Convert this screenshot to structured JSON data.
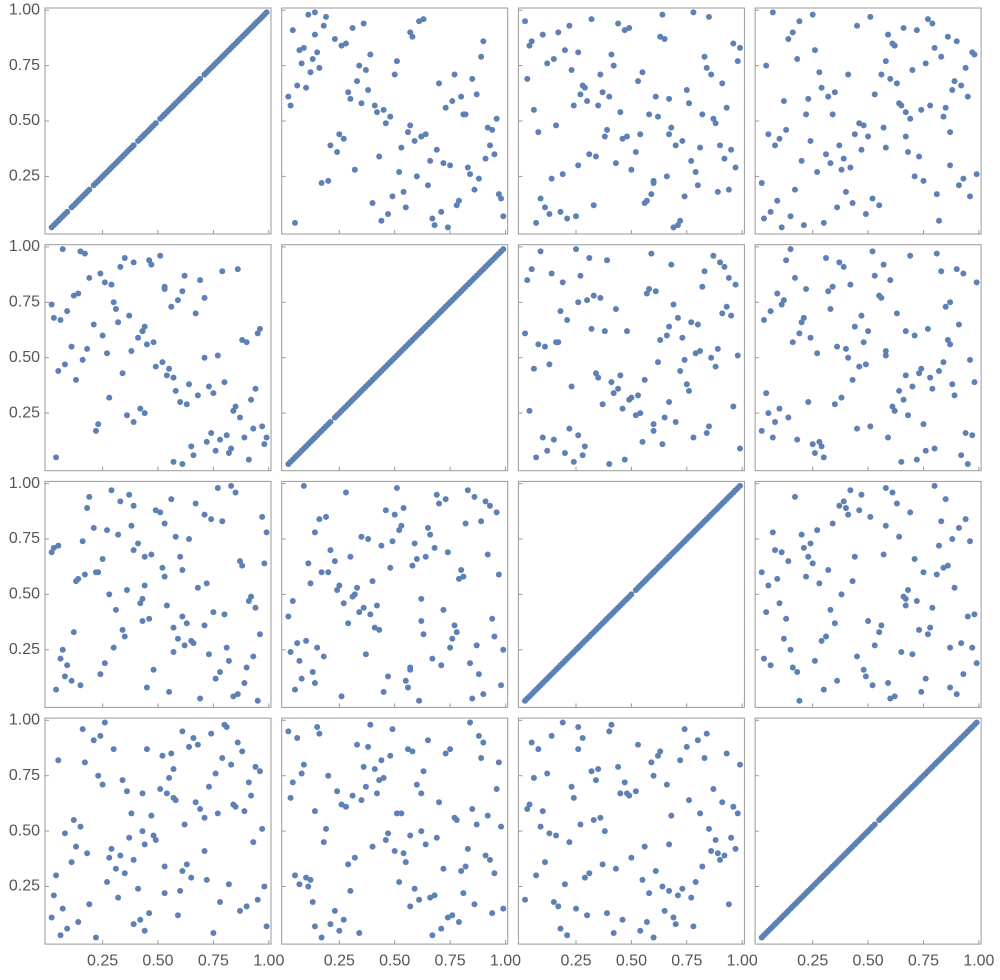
{
  "chart_data": {
    "type": "scatter-matrix",
    "color": "#5e81b5",
    "xlim": [
      -0.01,
      1.01
    ],
    "ylim": [
      -0.01,
      1.01
    ],
    "xticks": [
      0.25,
      {
        "value": 0.5,
        "label": "0.50"
      },
      0.75,
      {
        "value": 1,
        "label": "1.00"
      }
    ],
    "yticks": [
      0.25,
      {
        "value": 0.5,
        "label": "0.50"
      },
      0.75,
      {
        "value": 1,
        "label": "1.00"
      }
    ],
    "dimensions": [
      [
        0.12,
        0.87,
        0.45,
        0.33,
        0.91,
        0.06,
        0.58,
        0.72,
        0.24,
        0.49,
        0.95,
        0.17,
        0.63,
        0.38,
        0.81,
        0.02,
        0.54,
        0.29,
        0.76,
        0.41,
        0.68,
        0.09,
        0.97,
        0.35,
        0.52,
        0.84,
        0.19,
        0.61,
        0.44,
        0.73,
        0.27,
        0.89,
        0.14,
        0.57,
        0.39,
        0.66,
        0.03,
        0.92,
        0.48,
        0.79,
        0.22,
        0.55,
        0.31,
        0.85,
        0.07,
        0.64,
        0.43,
        0.98,
        0.26,
        0.71,
        0.36,
        0.59,
        0.83,
        0.11,
        0.47,
        0.75,
        0.21,
        0.93,
        0.53,
        0.34,
        0.67,
        0.04,
        0.88,
        0.42,
        0.62,
        0.16,
        0.78,
        0.51,
        0.28,
        0.96,
        0.39,
        0.69,
        0.13,
        0.56,
        0.82,
        0.25,
        0.46,
        0.74,
        0.08,
        0.61,
        0.94,
        0.32,
        0.57,
        0.18,
        0.86,
        0.44,
        0.71,
        0.05,
        0.65,
        0.37,
        0.9,
        0.23,
        0.53,
        0.8,
        0.15,
        0.6,
        0.43,
        0.99,
        0.3,
        0.77
      ],
      [
        0.78,
        0.23,
        0.56,
        0.91,
        0.04,
        0.67,
        0.35,
        0.12,
        0.88,
        0.46,
        0.61,
        0.97,
        0.29,
        0.53,
        0.15,
        0.74,
        0.42,
        0.83,
        0.08,
        0.59,
        0.33,
        0.71,
        0.19,
        0.95,
        0.48,
        0.26,
        0.86,
        0.02,
        0.64,
        0.37,
        0.52,
        0.14,
        0.79,
        0.41,
        0.93,
        0.06,
        0.68,
        0.31,
        0.57,
        0.89,
        0.17,
        0.45,
        0.72,
        0.28,
        0.99,
        0.38,
        0.62,
        0.11,
        0.84,
        0.5,
        0.24,
        0.76,
        0.09,
        0.55,
        0.92,
        0.34,
        0.65,
        0.18,
        0.81,
        0.43,
        0.7,
        0.05,
        0.58,
        0.27,
        0.87,
        0.49,
        0.13,
        0.96,
        0.32,
        0.63,
        0.21,
        0.85,
        0.4,
        0.73,
        0.07,
        0.6,
        0.94,
        0.16,
        0.47,
        0.8,
        0.36,
        0.66,
        0.03,
        0.54,
        0.9,
        0.25,
        0.77,
        0.44,
        0.1,
        0.69,
        0.57,
        0.2,
        0.82,
        0.39,
        0.98,
        0.3,
        0.62,
        0.14,
        0.75,
        0.51
      ],
      [
        0.33,
        0.65,
        0.08,
        0.92,
        0.47,
        0.21,
        0.76,
        0.55,
        0.14,
        0.88,
        0.02,
        0.59,
        0.37,
        0.81,
        0.26,
        0.69,
        0.45,
        0.97,
        0.12,
        0.73,
        0.53,
        0.18,
        0.85,
        0.31,
        0.62,
        0.04,
        0.94,
        0.4,
        0.67,
        0.23,
        0.79,
        0.1,
        0.57,
        0.35,
        0.9,
        0.28,
        0.71,
        0.49,
        0.16,
        0.83,
        0.6,
        0.06,
        0.43,
        0.96,
        0.25,
        0.75,
        0.38,
        0.64,
        0.19,
        0.86,
        0.52,
        0.3,
        0.99,
        0.11,
        0.68,
        0.42,
        0.8,
        0.22,
        0.58,
        0.34,
        0.91,
        0.07,
        0.63,
        0.46,
        0.27,
        0.74,
        0.15,
        0.87,
        0.5,
        0.32,
        0.7,
        0.03,
        0.56,
        0.93,
        0.2,
        0.66,
        0.39,
        0.84,
        0.13,
        0.61,
        0.44,
        0.77,
        0.24,
        0.89,
        0.05,
        0.54,
        0.36,
        0.72,
        0.29,
        0.95,
        0.17,
        0.6,
        0.82,
        0.41,
        0.09,
        0.67,
        0.48,
        0.78,
        0.26,
        0.98
      ],
      [
        0.55,
        0.14,
        0.87,
        0.39,
        0.72,
        0.03,
        0.64,
        0.28,
        0.93,
        0.46,
        0.19,
        0.81,
        0.35,
        0.58,
        0.97,
        0.11,
        0.67,
        0.42,
        0.76,
        0.24,
        0.89,
        0.06,
        0.51,
        0.31,
        0.84,
        0.62,
        0.17,
        0.95,
        0.44,
        0.7,
        0.27,
        0.59,
        0.09,
        0.78,
        0.37,
        0.92,
        0.21,
        0.66,
        0.48,
        0.83,
        0.02,
        0.74,
        0.33,
        0.61,
        0.15,
        0.88,
        0.5,
        0.25,
        0.99,
        0.41,
        0.68,
        0.12,
        0.8,
        0.36,
        0.57,
        0.04,
        0.91,
        0.45,
        0.22,
        0.73,
        0.63,
        0.3,
        0.86,
        0.1,
        0.53,
        0.96,
        0.18,
        0.69,
        0.38,
        0.77,
        0.08,
        0.6,
        0.43,
        0.85,
        0.26,
        0.71,
        0.13,
        0.94,
        0.49,
        0.32,
        0.79,
        0.2,
        0.65,
        0.4,
        0.9,
        0.05,
        0.56,
        0.82,
        0.29,
        0.47,
        0.16,
        0.75,
        0.34,
        0.98,
        0.52,
        0.23,
        0.67,
        0.07,
        0.87,
        0.58
      ]
    ]
  }
}
